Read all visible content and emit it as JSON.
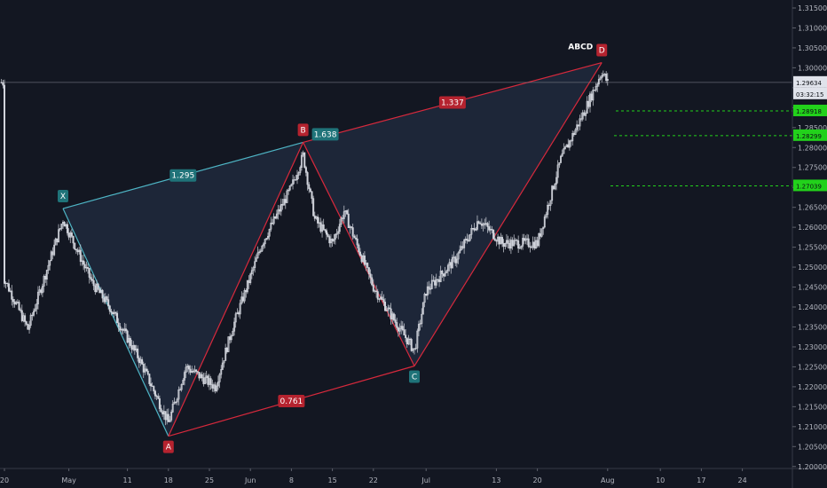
{
  "chart_data": {
    "type": "candlestick",
    "pattern_name": "ABCD",
    "y_axis_ticks": [
      "1.31500",
      "1.31000",
      "1.30500",
      "1.30000",
      "1.29500",
      "1.29000",
      "1.28500",
      "1.28000",
      "1.27500",
      "1.27000",
      "1.26500",
      "1.26000",
      "1.25500",
      "1.25000",
      "1.24500",
      "1.24000",
      "1.23500",
      "1.23000",
      "1.22500",
      "1.22000",
      "1.21500",
      "1.21000",
      "1.20500",
      "1.20000"
    ],
    "ylim": [
      1.1995,
      1.317
    ],
    "x_axis_labels": [
      "20",
      "May",
      "11",
      "18",
      "25",
      "Jun",
      "8",
      "15",
      "22",
      "Jul",
      "13",
      "20",
      "Aug",
      "10",
      "17",
      "24"
    ],
    "pattern_points": [
      {
        "label": "X",
        "date": "2020-04-30",
        "price": 1.2647
      },
      {
        "label": "A",
        "date": "2020-05-18",
        "price": 1.2076
      },
      {
        "label": "B",
        "date": "2020-06-10",
        "price": 1.2813
      },
      {
        "label": "C",
        "date": "2020-06-29",
        "price": 1.2252
      },
      {
        "label": "D",
        "date": "2020-07-31",
        "price": 1.3013
      }
    ],
    "ratios": [
      {
        "value": "1.295",
        "between": "X-B"
      },
      {
        "value": "1.638",
        "between": "B"
      },
      {
        "value": "0.761",
        "between": "A-C"
      },
      {
        "value": "1.337",
        "between": "B-D"
      }
    ],
    "current_price": {
      "value": "1.29634",
      "countdown": "03:32:15"
    },
    "target_levels": [
      {
        "value": "1.28918",
        "price": 1.28918
      },
      {
        "value": "1.28299",
        "price": 1.28299
      },
      {
        "value": "1.27039",
        "price": 1.27039
      }
    ],
    "price_anchors": [
      [
        "2020-04-20",
        1.247
      ],
      [
        "2020-04-24",
        1.2345
      ],
      [
        "2020-04-30",
        1.262
      ],
      [
        "2020-05-05",
        1.246
      ],
      [
        "2020-05-08",
        1.24
      ],
      [
        "2020-05-13",
        1.227
      ],
      [
        "2020-05-18",
        1.211
      ],
      [
        "2020-05-21",
        1.225
      ],
      [
        "2020-05-26",
        1.22
      ],
      [
        "2020-05-29",
        1.235
      ],
      [
        "2020-06-03",
        1.256
      ],
      [
        "2020-06-08",
        1.27
      ],
      [
        "2020-06-10",
        1.278
      ],
      [
        "2020-06-12",
        1.262
      ],
      [
        "2020-06-15",
        1.256
      ],
      [
        "2020-06-17",
        1.264
      ],
      [
        "2020-06-22",
        1.245
      ],
      [
        "2020-06-25",
        1.238
      ],
      [
        "2020-06-29",
        1.229
      ],
      [
        "2020-07-01",
        1.244
      ],
      [
        "2020-07-06",
        1.252
      ],
      [
        "2020-07-10",
        1.262
      ],
      [
        "2020-07-14",
        1.256
      ],
      [
        "2020-07-17",
        1.256
      ],
      [
        "2020-07-20",
        1.256
      ],
      [
        "2020-07-24",
        1.277
      ],
      [
        "2020-07-28",
        1.289
      ],
      [
        "2020-07-31",
        1.299
      ],
      [
        "2020-08-01",
        1.2963
      ]
    ],
    "colors": {
      "background": "#131722",
      "candle": "#d1d4dc",
      "xab_line": "#4eb5c5",
      "bcd_line": "#d7293c",
      "fill": "#2b3a55",
      "target_line": "#22d11b",
      "label_red": "#b5232f",
      "label_teal": "#1f7379"
    }
  }
}
